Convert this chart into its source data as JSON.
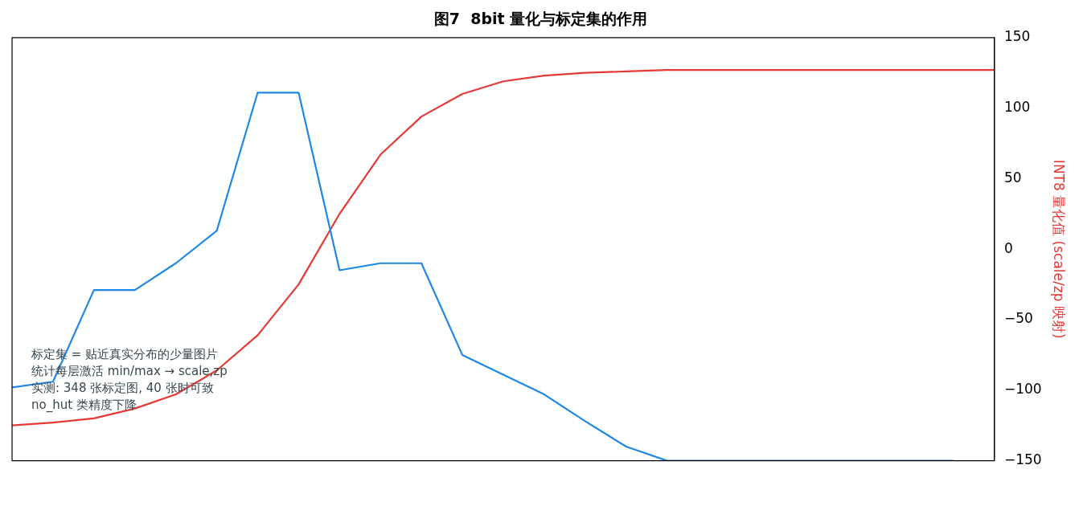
{
  "chart_data": {
    "type": "line",
    "title": "图7  8bit 量化与标定集的作用",
    "ylabel": "INT8 量化值 (scale/zp 映射)",
    "categories": [
      null,
      null,
      null,
      null,
      null,
      null,
      null,
      null,
      null,
      null,
      null,
      null,
      null,
      null,
      null,
      null,
      null,
      null,
      null,
      null,
      null,
      null,
      null,
      null,
      null
    ],
    "series": [
      {
        "color": "#1e88e5",
        "values": [
          -98,
          -94,
          -29,
          -29,
          -10,
          13,
          111,
          111,
          -15,
          -10,
          -10,
          -75,
          -89,
          -103,
          -122,
          -140,
          -150,
          -150,
          -150,
          -150,
          -150,
          -150,
          -150,
          -150,
          null
        ]
      },
      {
        "color": "#e53935",
        "values": [
          -125,
          -123,
          -120,
          -113,
          -103,
          -86,
          -61,
          -25,
          25,
          67,
          94,
          110,
          119,
          123,
          125,
          126,
          127,
          127,
          127,
          127,
          127,
          127,
          127,
          127,
          127
        ]
      }
    ],
    "ylim": [
      -150,
      150
    ],
    "yticks": [
      -150,
      -100,
      -50,
      0,
      50,
      100,
      150
    ],
    "annotations": [
      "标定集 = 贴近真实分布的少量图片",
      "统计每层激活 min/max → scale,zp",
      "实测: 348 张标定图, 40 张时可致",
      "no_hut 类精度下降"
    ],
    "grid": false,
    "legend": false,
    "marker": "none",
    "line_style": "solid"
  }
}
